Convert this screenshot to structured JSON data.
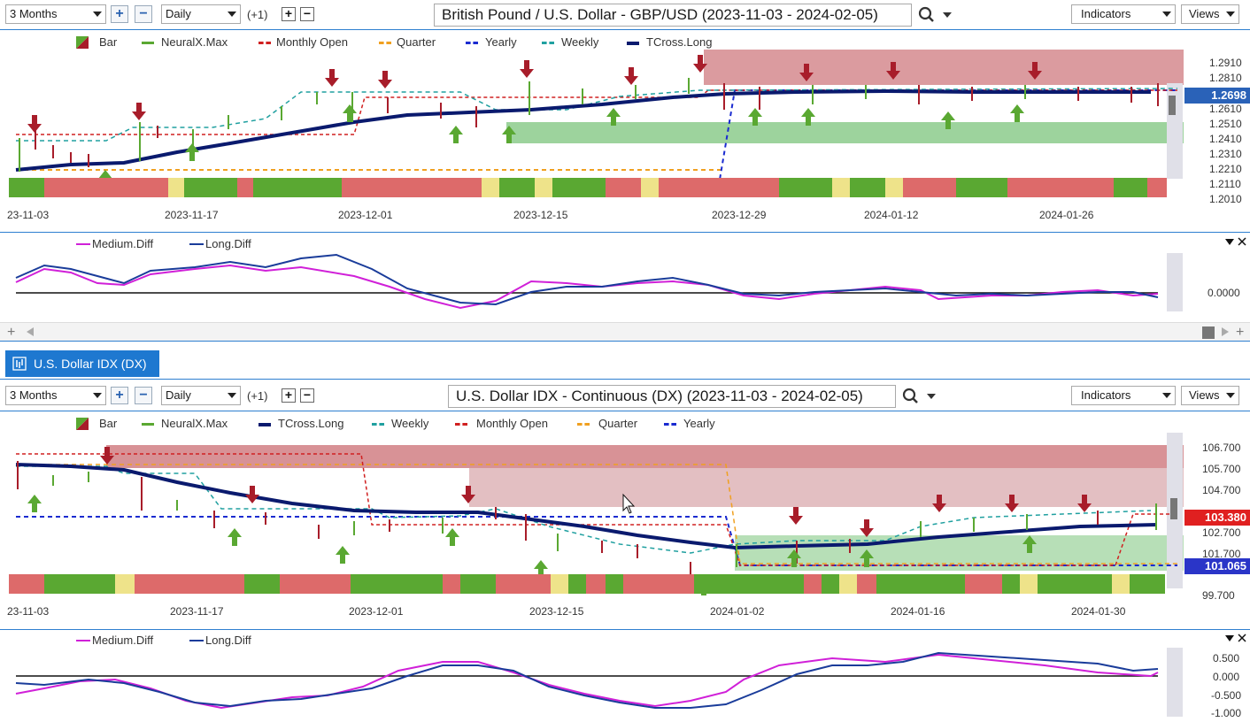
{
  "top_toolbar": {
    "period": "3 Months",
    "interval": "Daily",
    "offset": "(+1)",
    "title": "British Pound / U.S. Dollar - GBP/USD (2023-11-03 - 2024-02-05)",
    "indicators": "Indicators",
    "views": "Views"
  },
  "top_chart": {
    "legend": [
      "Bar",
      "NeuralX.Max",
      "Monthly Open",
      "Quarter",
      "Yearly",
      "Weekly",
      "TCross.Long"
    ],
    "price_ticks": [
      "1.2910",
      "1.2810",
      "1.2610",
      "1.2510",
      "1.2410",
      "1.2310",
      "1.2210",
      "1.2110",
      "1.2010"
    ],
    "current_price": "1.2698",
    "dates": [
      "23-11-03",
      "2023-11-17",
      "2023-12-01",
      "2023-12-15",
      "2023-12-29",
      "2024-01-12",
      "2024-01-26"
    ],
    "sub_legend": [
      "Medium.Diff",
      "Long.Diff"
    ],
    "sub_value": "0.0000"
  },
  "tab": {
    "label": "U.S. Dollar IDX (DX)"
  },
  "bottom_toolbar": {
    "period": "3 Months",
    "interval": "Daily",
    "offset": "(+1)",
    "title": "U.S. Dollar IDX - Continuous (DX) (2023-11-03 - 2024-02-05)",
    "indicators": "Indicators",
    "views": "Views"
  },
  "bottom_chart": {
    "legend": [
      "Bar",
      "NeuralX.Max",
      "TCross.Long",
      "Weekly",
      "Monthly Open",
      "Quarter",
      "Yearly"
    ],
    "price_ticks": [
      "106.700",
      "105.700",
      "104.700",
      "102.700",
      "101.700",
      "99.700"
    ],
    "current_price": "103.380",
    "yearly_price": "101.065",
    "dates": [
      "23-11-03",
      "2023-11-17",
      "2023-12-01",
      "2023-12-15",
      "2024-01-02",
      "2024-01-16",
      "2024-01-30"
    ],
    "sub_legend": [
      "Medium.Diff",
      "Long.Diff"
    ],
    "sub_ticks": [
      "0.500",
      "0.000",
      "-0.500",
      "-1.000"
    ]
  },
  "colors": {
    "accent": "#2e7fd0",
    "bull": "#5aa832",
    "bear": "#a81d2a",
    "tcross": "#0a1a6e",
    "up_tag": "#e02020",
    "blue_tag": "#2a35c8",
    "medium_diff": "#d020d8",
    "long_diff": "#1a3c9a"
  }
}
